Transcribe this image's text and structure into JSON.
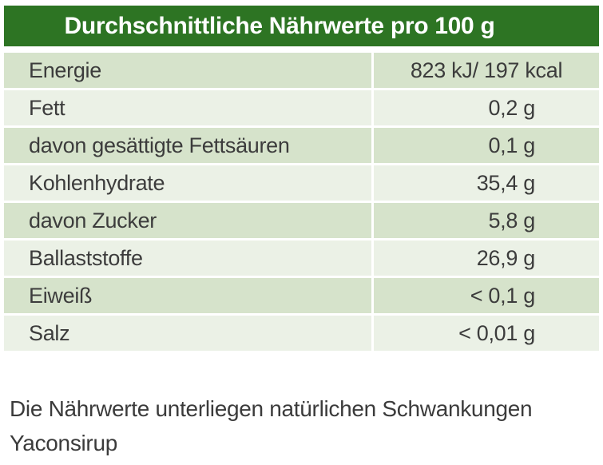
{
  "table": {
    "title": "Durchschnittliche Nährwerte pro 100 g",
    "rows": [
      {
        "label": "Energie",
        "value": "823 kJ/ 197 kcal"
      },
      {
        "label": "Fett",
        "value": "0,2 g"
      },
      {
        "label": "davon gesättigte Fettsäuren",
        "value": "0,1 g"
      },
      {
        "label": "Kohlenhydrate",
        "value": "35,4 g"
      },
      {
        "label": "davon Zucker",
        "value": "5,8 g"
      },
      {
        "label": "Ballaststoffe",
        "value": "26,9 g"
      },
      {
        "label": "Eiweiß",
        "value": "< 0,1 g"
      },
      {
        "label": "Salz",
        "value": "< 0,01 g"
      }
    ]
  },
  "footer": {
    "line1": "Die Nährwerte unterliegen natürlichen Schwankungen",
    "line2": "Yaconsirup"
  },
  "colors": {
    "header_bg": "#2D7423",
    "header_text": "#FFFFFF",
    "row_green": "#D6E3CB",
    "row_light": "#EBF1E6",
    "text": "#3C3C3C"
  }
}
